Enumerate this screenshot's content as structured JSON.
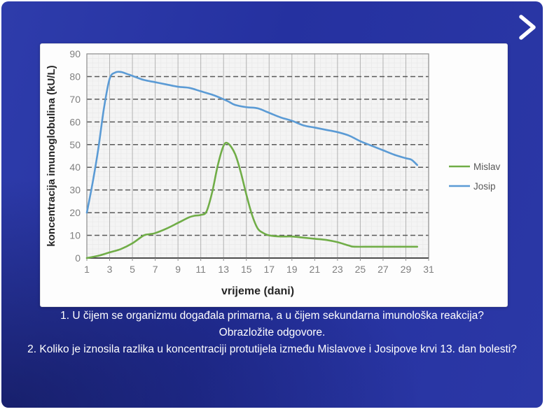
{
  "nav": {
    "next_icon": "chevron-right"
  },
  "questions": [
    "1. U čijem se organizmu događala primarna, a u čijem sekundarna imunološka reakcija?",
    "Obrazložite odgovore.",
    "2. Koliko je iznosila razlika u koncentraciji protutijela između Mislavove i Josipove krvi 13. dan bolesti?"
  ],
  "colors": {
    "slide_background": "#2834a2",
    "card_background": "#fdfdfd",
    "text": "#ffffff",
    "mislav_green": "#70ad47",
    "josip_blue": "#5b9bd5"
  },
  "chart_data": {
    "type": "line",
    "title": "",
    "xlabel": "vrijeme (dani)",
    "ylabel": "koncentracija imunoglobulina (kU/L)",
    "xlim": [
      1,
      31
    ],
    "ylim": [
      0,
      90
    ],
    "xticks": [
      1,
      3,
      5,
      7,
      9,
      11,
      13,
      15,
      17,
      19,
      21,
      23,
      25,
      27,
      29,
      31
    ],
    "yticks": [
      0,
      10,
      20,
      30,
      40,
      50,
      60,
      70,
      80,
      90
    ],
    "grid": {
      "minor_x_step": 0.5,
      "minor_y_step": 2,
      "minor_color": "#e9e9e9",
      "major_vertical_color": "#b3b3b3",
      "dashed_horizontal_color": "#595959",
      "border_color": "#8c8c8c",
      "axis_color": "#4d4d4d",
      "tick_label_color": "#7f7f7f",
      "axis_title_color": "#262626",
      "legend_text_color": "#595959"
    },
    "legend_position": "right",
    "series": [
      {
        "name": "Mislav",
        "color": "#70ad47",
        "points": [
          [
            1,
            0
          ],
          [
            2,
            1
          ],
          [
            3,
            2.5
          ],
          [
            4,
            4
          ],
          [
            5,
            6.5
          ],
          [
            6,
            10
          ],
          [
            6.5,
            10.5
          ],
          [
            7,
            11
          ],
          [
            8,
            13
          ],
          [
            9,
            15.5
          ],
          [
            10,
            18
          ],
          [
            10.5,
            18.7
          ],
          [
            11,
            19
          ],
          [
            11.5,
            20.5
          ],
          [
            12,
            29
          ],
          [
            12.5,
            41
          ],
          [
            13,
            49.5
          ],
          [
            13.4,
            50.5
          ],
          [
            14,
            46
          ],
          [
            14.5,
            38
          ],
          [
            15,
            28
          ],
          [
            15.5,
            19
          ],
          [
            16,
            13
          ],
          [
            16.5,
            11
          ],
          [
            17,
            10
          ],
          [
            18,
            9.5
          ],
          [
            19,
            9.5
          ],
          [
            20,
            9
          ],
          [
            21,
            8.5
          ],
          [
            22,
            8
          ],
          [
            23,
            7
          ],
          [
            24,
            5.5
          ],
          [
            24.5,
            5
          ],
          [
            26,
            5
          ],
          [
            28,
            5
          ],
          [
            30,
            5
          ]
        ]
      },
      {
        "name": "Josip",
        "color": "#5b9bd5",
        "points": [
          [
            1,
            20
          ],
          [
            1.5,
            33
          ],
          [
            2,
            48
          ],
          [
            2.5,
            66
          ],
          [
            3,
            79
          ],
          [
            3.5,
            81.8
          ],
          [
            4,
            82
          ],
          [
            4.5,
            81.2
          ],
          [
            5,
            80.3
          ],
          [
            6,
            78.5
          ],
          [
            7,
            77.5
          ],
          [
            8,
            76.5
          ],
          [
            9,
            75.5
          ],
          [
            10,
            75
          ],
          [
            11,
            73.5
          ],
          [
            12,
            72
          ],
          [
            13,
            70
          ],
          [
            13.5,
            68.8
          ],
          [
            14,
            67.5
          ],
          [
            15,
            66.5
          ],
          [
            16,
            66
          ],
          [
            17,
            64
          ],
          [
            18,
            62
          ],
          [
            19,
            60.5
          ],
          [
            20,
            58.5
          ],
          [
            21,
            57.5
          ],
          [
            22,
            56.5
          ],
          [
            23,
            55.5
          ],
          [
            24,
            54
          ],
          [
            25,
            51.5
          ],
          [
            26,
            49.5
          ],
          [
            27,
            47.5
          ],
          [
            28,
            45.5
          ],
          [
            29,
            44
          ],
          [
            29.5,
            43.3
          ],
          [
            30,
            41
          ]
        ]
      }
    ]
  }
}
